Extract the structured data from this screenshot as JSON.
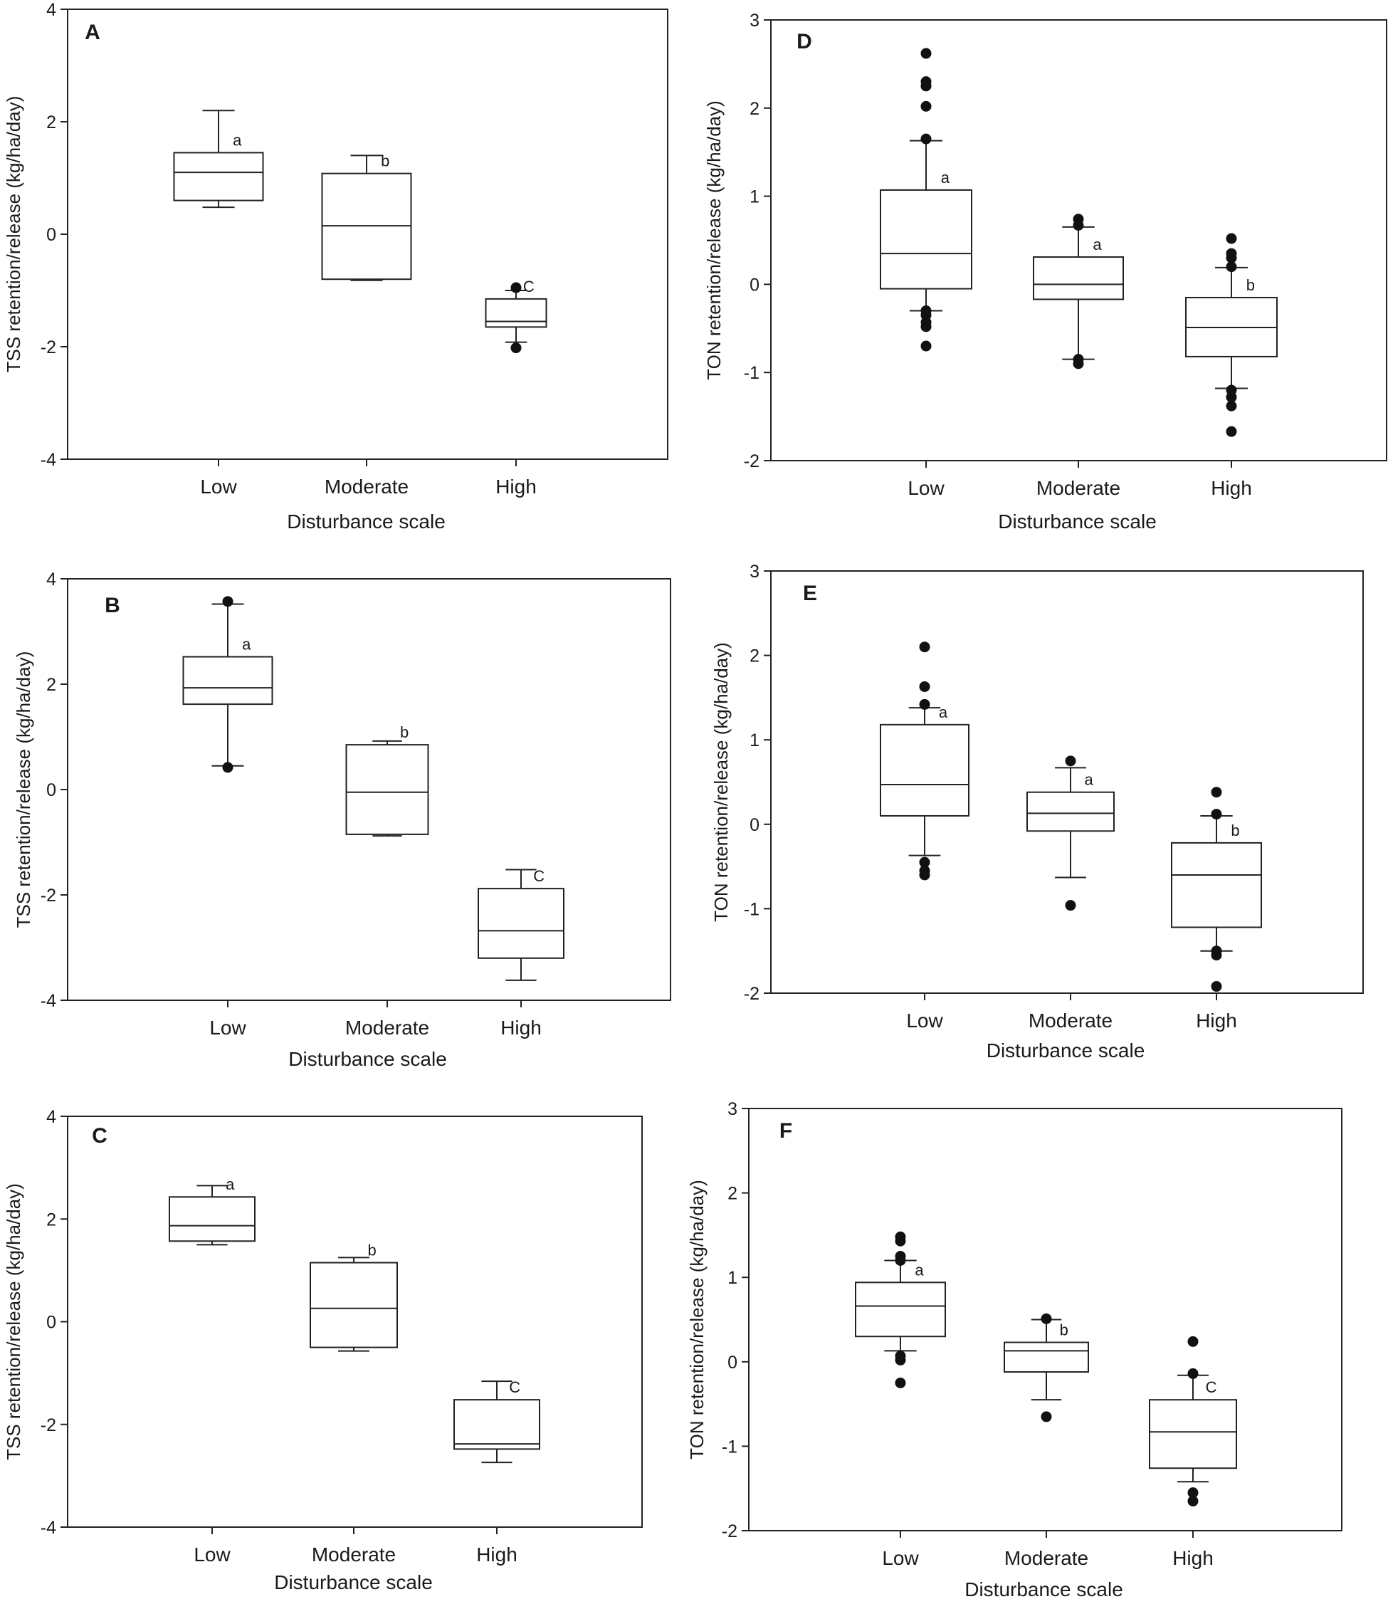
{
  "figure": {
    "description_labels": [
      "A",
      "B",
      "C",
      "D",
      "E",
      "F"
    ]
  },
  "chart_data": [
    {
      "panel": "A",
      "type": "box",
      "xlabel": "Disturbance scale",
      "ylabel": "TSS retention/release (kg/ha/day)",
      "ylim": [
        -4,
        4
      ],
      "yticks": [
        4,
        2,
        0,
        -2,
        -4
      ],
      "categories": [
        "Low",
        "Moderate",
        "High"
      ],
      "boxes": [
        {
          "category": "Low",
          "whisker_low": 0.48,
          "q1": 0.6,
          "median": 1.1,
          "q3": 1.45,
          "whisker_high": 2.2,
          "outliers": [],
          "sig": "a"
        },
        {
          "category": "Moderate",
          "whisker_low": -0.82,
          "q1": -0.8,
          "median": 0.15,
          "q3": 1.08,
          "whisker_high": 1.4,
          "outliers": [],
          "sig": "b"
        },
        {
          "category": "High",
          "whisker_low": -1.92,
          "q1": -1.65,
          "median": -1.55,
          "q3": -1.15,
          "whisker_high": -1.0,
          "outliers": [
            -0.95,
            -2.02
          ],
          "sig": "C"
        }
      ]
    },
    {
      "panel": "B",
      "type": "box",
      "xlabel": "Disturbance scale",
      "ylabel": "TSS retention/release (kg/ha/day)",
      "ylim": [
        -4,
        4
      ],
      "yticks": [
        4,
        2,
        0,
        -2,
        -4
      ],
      "categories": [
        "Low",
        "Moderate",
        "High"
      ],
      "boxes": [
        {
          "category": "Low",
          "whisker_low": 0.45,
          "q1": 1.62,
          "median": 1.93,
          "q3": 2.52,
          "whisker_high": 3.52,
          "outliers": [
            3.57,
            0.42
          ],
          "sig": "a"
        },
        {
          "category": "Moderate",
          "whisker_low": -0.88,
          "q1": -0.85,
          "median": -0.05,
          "q3": 0.85,
          "whisker_high": 0.92,
          "outliers": [],
          "sig": "b"
        },
        {
          "category": "High",
          "whisker_low": -3.62,
          "q1": -3.2,
          "median": -2.68,
          "q3": -1.88,
          "whisker_high": -1.52,
          "outliers": [],
          "sig": "C"
        }
      ]
    },
    {
      "panel": "C",
      "type": "box",
      "xlabel": "Disturbance scale",
      "ylabel": "TSS retention/release (kg/ha/day)",
      "ylim": [
        -4,
        4
      ],
      "yticks": [
        4,
        2,
        0,
        -2,
        -4
      ],
      "categories": [
        "Low",
        "Moderate",
        "High"
      ],
      "boxes": [
        {
          "category": "Low",
          "whisker_low": 1.5,
          "q1": 1.57,
          "median": 1.87,
          "q3": 2.43,
          "whisker_high": 2.65,
          "outliers": [],
          "sig": "a"
        },
        {
          "category": "Moderate",
          "whisker_low": -0.57,
          "q1": -0.5,
          "median": 0.26,
          "q3": 1.15,
          "whisker_high": 1.25,
          "outliers": [],
          "sig": "b"
        },
        {
          "category": "High",
          "whisker_low": -2.74,
          "q1": -2.48,
          "median": -2.38,
          "q3": -1.52,
          "whisker_high": -1.16,
          "outliers": [],
          "sig": "C"
        }
      ]
    },
    {
      "panel": "D",
      "type": "box",
      "xlabel": "Disturbance scale",
      "ylabel": "TON retention/release (kg/ha/day)",
      "ylim": [
        -2,
        3
      ],
      "yticks": [
        3,
        2,
        1,
        0,
        -1,
        -2
      ],
      "categories": [
        "Low",
        "Moderate",
        "High"
      ],
      "boxes": [
        {
          "category": "Low",
          "whisker_low": -0.3,
          "q1": -0.05,
          "median": 0.35,
          "q3": 1.07,
          "whisker_high": 1.63,
          "outliers": [
            2.62,
            2.3,
            2.25,
            2.02,
            1.65,
            -0.3,
            -0.35,
            -0.43,
            -0.48,
            -0.7
          ],
          "sig": "a"
        },
        {
          "category": "Moderate",
          "whisker_low": -0.85,
          "q1": -0.17,
          "median": 0.0,
          "q3": 0.31,
          "whisker_high": 0.65,
          "outliers": [
            0.74,
            0.67,
            -0.85,
            -0.9
          ],
          "sig": "a"
        },
        {
          "category": "High",
          "whisker_low": -1.18,
          "q1": -0.82,
          "median": -0.49,
          "q3": -0.15,
          "whisker_high": 0.19,
          "outliers": [
            0.52,
            0.35,
            0.3,
            0.2,
            -1.2,
            -1.28,
            -1.38,
            -1.67
          ],
          "sig": "b"
        }
      ]
    },
    {
      "panel": "E",
      "type": "box",
      "xlabel": "Disturbance scale",
      "ylabel": "TON retention/release (kg/ha/day)",
      "ylim": [
        -2,
        3
      ],
      "yticks": [
        3,
        2,
        1,
        0,
        -1,
        -2
      ],
      "categories": [
        "Low",
        "Moderate",
        "High"
      ],
      "boxes": [
        {
          "category": "Low",
          "whisker_low": -0.37,
          "q1": 0.1,
          "median": 0.47,
          "q3": 1.18,
          "whisker_high": 1.38,
          "outliers": [
            2.1,
            1.63,
            1.42,
            -0.45,
            -0.55,
            -0.6
          ],
          "sig": "a"
        },
        {
          "category": "Moderate",
          "whisker_low": -0.63,
          "q1": -0.08,
          "median": 0.13,
          "q3": 0.38,
          "whisker_high": 0.67,
          "outliers": [
            0.75,
            -0.96
          ],
          "sig": "a"
        },
        {
          "category": "High",
          "whisker_low": -1.5,
          "q1": -1.22,
          "median": -0.6,
          "q3": -0.22,
          "whisker_high": 0.1,
          "outliers": [
            0.38,
            0.12,
            -1.5,
            -1.55,
            -1.92
          ],
          "sig": "b"
        }
      ]
    },
    {
      "panel": "F",
      "type": "box",
      "xlabel": "Disturbance scale",
      "ylabel": "TON retention/release (kg/ha/day)",
      "ylim": [
        -2,
        3
      ],
      "yticks": [
        3,
        2,
        1,
        0,
        -1,
        -2
      ],
      "categories": [
        "Low",
        "Moderate",
        "High"
      ],
      "boxes": [
        {
          "category": "Low",
          "whisker_low": 0.13,
          "q1": 0.3,
          "median": 0.66,
          "q3": 0.94,
          "whisker_high": 1.2,
          "outliers": [
            1.48,
            1.43,
            1.25,
            1.2,
            0.07,
            0.02,
            -0.25
          ],
          "sig": "a"
        },
        {
          "category": "Moderate",
          "whisker_low": -0.45,
          "q1": -0.12,
          "median": 0.13,
          "q3": 0.23,
          "whisker_high": 0.5,
          "outliers": [
            0.51,
            -0.65
          ],
          "sig": "b"
        },
        {
          "category": "High",
          "whisker_low": -1.42,
          "q1": -1.26,
          "median": -0.83,
          "q3": -0.45,
          "whisker_high": -0.16,
          "outliers": [
            0.24,
            -0.14,
            -1.55,
            -1.65
          ],
          "sig": "C"
        }
      ]
    }
  ]
}
